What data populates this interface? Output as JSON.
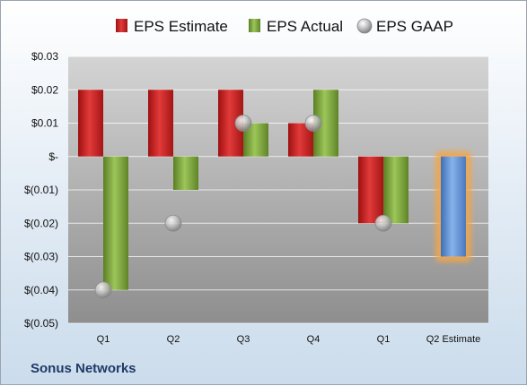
{
  "company": "Sonus Networks",
  "colors": {
    "estimate": "#cc1f1f",
    "actual": "#7ba43a",
    "gaap": "#b9b9b9",
    "highlight": "#5b8fd6",
    "glow": "#f5a646"
  },
  "chart_data": {
    "type": "bar",
    "categories": [
      "Q1",
      "Q2",
      "Q3",
      "Q4",
      "Q1",
      "Q2 Estimate"
    ],
    "series": [
      {
        "name": "EPS Estimate",
        "values": [
          0.02,
          0.02,
          0.02,
          0.01,
          -0.02,
          null
        ]
      },
      {
        "name": "EPS Actual",
        "values": [
          -0.04,
          -0.01,
          0.01,
          0.02,
          -0.02,
          null
        ]
      },
      {
        "name": "EPS GAAP",
        "values": [
          -0.04,
          -0.02,
          0.01,
          0.01,
          -0.02,
          null
        ]
      }
    ],
    "highlight": {
      "category": "Q2 Estimate",
      "value": -0.03
    },
    "ylim": [
      -0.05,
      0.03
    ],
    "yticks": [
      0.03,
      0.02,
      0.01,
      0,
      -0.01,
      -0.02,
      -0.03,
      -0.04,
      -0.05
    ],
    "ytick_labels": [
      "$0.03",
      "$0.02",
      "$0.01",
      "$-",
      "$(0.01)",
      "$(0.02)",
      "$(0.03)",
      "$(0.04)",
      "$(0.05)"
    ],
    "legend_position": "top",
    "grid": true
  }
}
